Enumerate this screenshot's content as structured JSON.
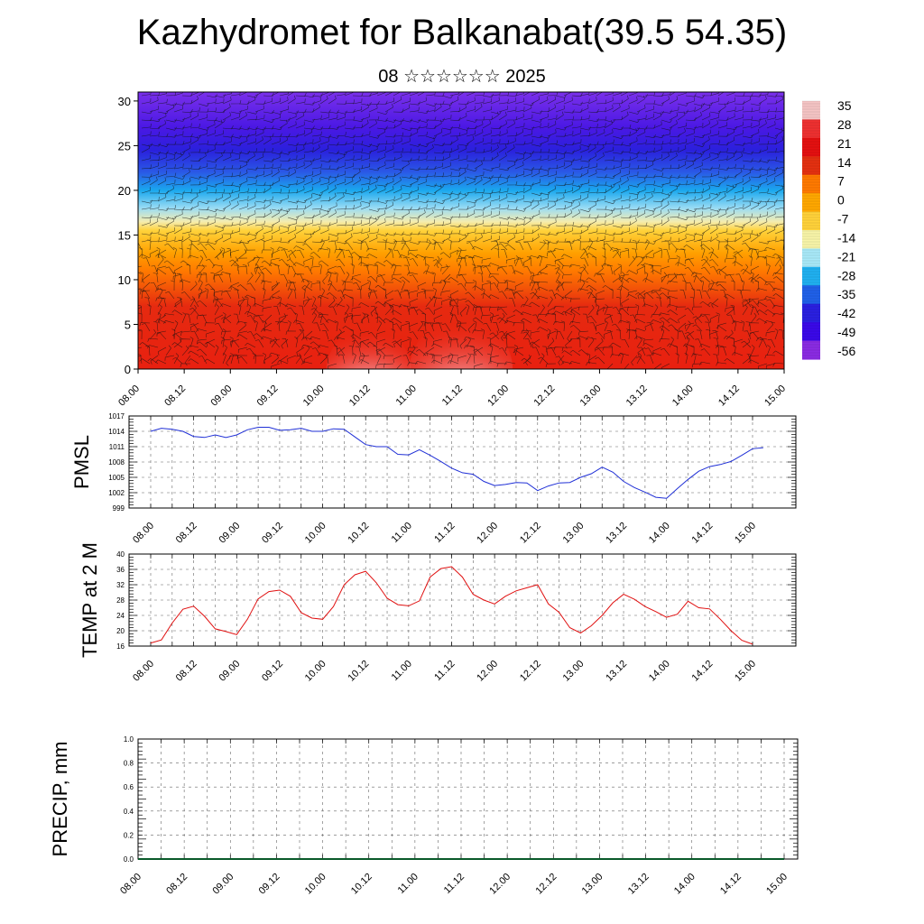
{
  "page": {
    "title": "Kazhydromet for Balkanabat(39.5 54.35)",
    "subtitle": "08 ☆☆☆☆☆☆ 2025"
  },
  "colors": {
    "pmsl_line": "#1f2fd6",
    "temp_line": "#e01010",
    "precip_line": "#0a5a2a",
    "grid": "#555555"
  },
  "chart_data": [
    {
      "id": "cross_section",
      "type": "heatmap",
      "title": "",
      "ylim": [
        0,
        31
      ],
      "yticks": [
        0,
        5,
        10,
        15,
        20,
        25,
        30
      ],
      "xticks": [
        "08.00",
        "08.12",
        "09.00",
        "09.12",
        "10.00",
        "10.12",
        "11.00",
        "11.12",
        "12.00",
        "12.12",
        "13.00",
        "13.12",
        "14.00",
        "14.12",
        "15.00"
      ],
      "colorbar_labels": [
        "35",
        "28",
        "21",
        "14",
        "7",
        "0",
        "-7",
        "-14",
        "-21",
        "-28",
        "-35",
        "-42",
        "-49",
        "-56"
      ],
      "colorbar_colors": [
        "#f4c4c4",
        "#ee3030",
        "#e41010",
        "#e43010",
        "#ff7a00",
        "#ffa800",
        "#ffd23a",
        "#f8f4a8",
        "#a8e8f8",
        "#20b0f0",
        "#2060e8",
        "#2a20e0",
        "#3a08e8",
        "#8a2be2"
      ],
      "vertical_profile": [
        {
          "z": 0,
          "color": "#e82010"
        },
        {
          "z": 7,
          "color": "#e62a10"
        },
        {
          "z": 11,
          "color": "#ff7a00"
        },
        {
          "z": 13,
          "color": "#ffa000"
        },
        {
          "z": 15.5,
          "color": "#ffd23a"
        },
        {
          "z": 16.5,
          "color": "#f4ecb0"
        },
        {
          "z": 18,
          "color": "#9adcf4"
        },
        {
          "z": 20,
          "color": "#1aa8ee"
        },
        {
          "z": 22,
          "color": "#2a5ae6"
        },
        {
          "z": 24.5,
          "color": "#2a20dc"
        },
        {
          "z": 27,
          "color": "#4a18e4"
        },
        {
          "z": 31,
          "color": "#7a30ea"
        }
      ],
      "warm_cores": [
        {
          "x_hours": 60,
          "z_top": 4.5
        },
        {
          "x_hours": 84,
          "z_top": 5.5
        }
      ]
    },
    {
      "id": "pmsl",
      "type": "line",
      "ylabel": "PMSL",
      "ylim": [
        999,
        1017
      ],
      "yticks": [
        "999",
        "1002",
        "1005",
        "1008",
        "1011",
        "1014",
        "1017"
      ],
      "xticks": [
        "08.00",
        "08.12",
        "09.00",
        "09.12",
        "10.00",
        "10.12",
        "11.00",
        "11.12",
        "12.00",
        "12.12",
        "13.00",
        "13.12",
        "14.00",
        "14.12",
        "15.00"
      ],
      "x_step_hours": 3,
      "values": [
        1014.0,
        1014.6,
        1014.4,
        1014.0,
        1013.0,
        1012.8,
        1013.3,
        1012.8,
        1013.3,
        1014.3,
        1014.8,
        1014.8,
        1014.2,
        1014.3,
        1014.6,
        1014.0,
        1014.0,
        1014.5,
        1014.4,
        1012.9,
        1011.4,
        1011.0,
        1011.0,
        1009.5,
        1009.4,
        1010.4,
        1009.3,
        1008.1,
        1006.8,
        1005.9,
        1005.6,
        1004.2,
        1003.4,
        1003.6,
        1004.0,
        1003.9,
        1002.4,
        1003.3,
        1003.9,
        1004.0,
        1005.0,
        1005.7,
        1007.0,
        1006.0,
        1004.2,
        1003.0,
        1002.1,
        1001.1,
        1000.9,
        1002.8,
        1004.6,
        1006.2,
        1007.1,
        1007.5,
        1008.1,
        1009.3,
        1010.6,
        1010.8
      ]
    },
    {
      "id": "temp2m",
      "type": "line",
      "ylabel": "TEMP at 2 M",
      "ylim": [
        16,
        40
      ],
      "yticks": [
        "16",
        "20",
        "24",
        "28",
        "32",
        "36",
        "40"
      ],
      "xticks": [
        "08.00",
        "08.12",
        "09.00",
        "09.12",
        "10.00",
        "10.12",
        "11.00",
        "11.12",
        "12.00",
        "12.12",
        "13.00",
        "13.12",
        "14.00",
        "14.12",
        "15.00"
      ],
      "x_step_hours": 3,
      "values": [
        16.8,
        17.6,
        22.0,
        25.6,
        26.4,
        23.8,
        20.5,
        19.8,
        19.0,
        23.0,
        28.3,
        30.2,
        30.6,
        29.0,
        24.7,
        23.3,
        23.0,
        26.3,
        32.0,
        34.6,
        35.5,
        32.5,
        28.5,
        26.8,
        26.5,
        27.8,
        34.0,
        36.2,
        36.7,
        34.0,
        29.5,
        28.0,
        27.0,
        29.0,
        30.4,
        31.2,
        32.0,
        27.0,
        24.8,
        20.8,
        19.4,
        21.3,
        24.0,
        27.3,
        29.5,
        28.2,
        26.3,
        25.0,
        23.5,
        24.3,
        27.7,
        26.0,
        25.7,
        23.0,
        20.0,
        17.5,
        16.5
      ]
    },
    {
      "id": "precip",
      "type": "line",
      "ylabel": "PRECIP, mm",
      "ylim": [
        0,
        1
      ],
      "yticks": [
        "0.0",
        "0.2",
        "0.4",
        "0.6",
        "0.8",
        "1.0"
      ],
      "xticks": [
        "08.00",
        "08.12",
        "09.00",
        "09.12",
        "10.00",
        "10.12",
        "11.00",
        "11.12",
        "12.00",
        "12.12",
        "13.00",
        "13.12",
        "14.00",
        "14.12",
        "15.00"
      ],
      "x_step_hours": 3,
      "values": [
        0,
        0,
        0,
        0,
        0,
        0,
        0,
        0,
        0,
        0,
        0,
        0,
        0,
        0,
        0,
        0,
        0,
        0,
        0,
        0,
        0,
        0,
        0,
        0,
        0,
        0,
        0,
        0,
        0,
        0,
        0,
        0,
        0,
        0,
        0,
        0,
        0,
        0,
        0,
        0,
        0,
        0,
        0,
        0,
        0,
        0,
        0,
        0,
        0,
        0,
        0,
        0,
        0,
        0,
        0,
        0,
        0
      ]
    }
  ]
}
